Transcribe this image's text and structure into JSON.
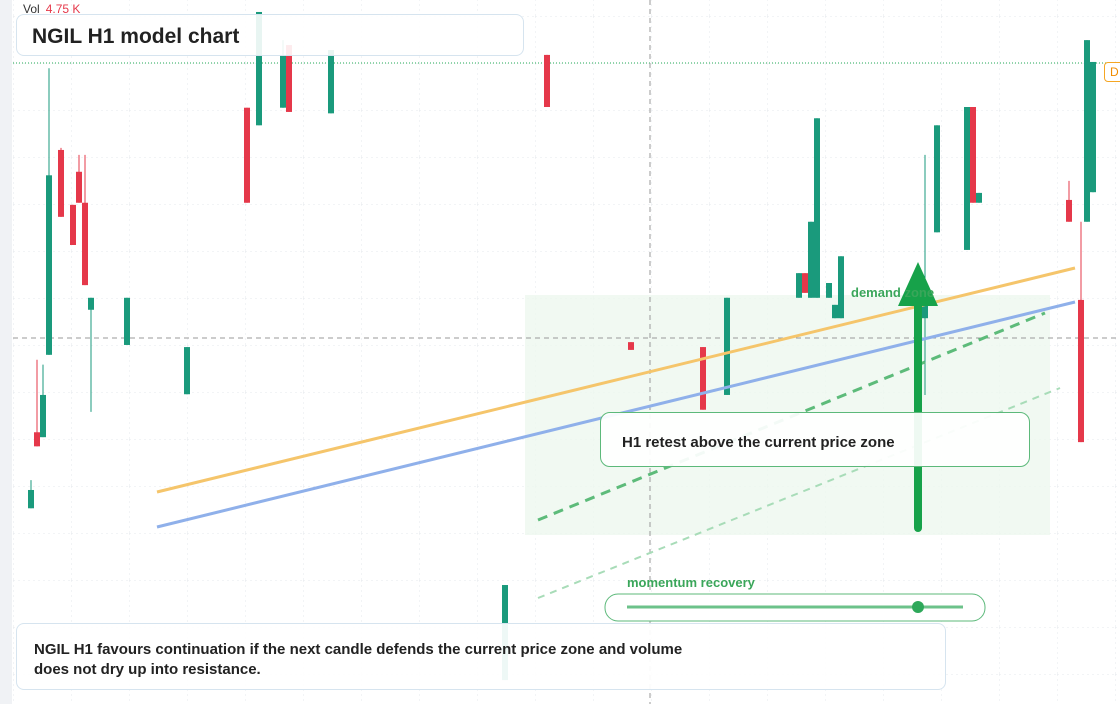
{
  "chart_data": {
    "type": "candlestick",
    "title": "NGIL H1 model chart",
    "volume_label": "Vol",
    "volume_value": "4.75 K",
    "annotations": {
      "zone": "demand zone",
      "callout": "H1 retest above the current price zone",
      "momentum": "momentum recovery",
      "note": "NGIL H1 favours continuation if the next candle defends the current price zone and volume does not dry up into resistance.",
      "marker": "D"
    },
    "up_color": "#1a9a7c",
    "down_color": "#e5384a",
    "xlim": [
      0,
      180
    ],
    "ylim": [
      0,
      100
    ],
    "x": [
      3,
      4,
      5,
      6,
      8,
      10,
      11,
      12,
      13,
      19,
      29,
      39,
      41,
      45,
      46,
      53,
      82,
      89,
      103,
      115,
      119,
      131,
      132,
      133,
      134,
      136,
      137,
      138,
      152,
      154,
      159,
      160,
      161,
      176,
      178,
      179,
      180
    ],
    "open": [
      27.8,
      38.6,
      37.9,
      49.6,
      78.7,
      70.9,
      75.6,
      71.2,
      56.0,
      51.0,
      44.0,
      84.7,
      82.2,
      84.7,
      93.6,
      83.9,
      3.4,
      92.2,
      51.4,
      50.7,
      43.9,
      57.7,
      61.2,
      57.7,
      57.7,
      57.7,
      54.8,
      54.8,
      54.8,
      67.0,
      64.5,
      84.8,
      71.2,
      71.6,
      57.4,
      68.5,
      72.7
    ],
    "high": [
      31.8,
      48.9,
      48.2,
      90.3,
      79.0,
      70.9,
      78.0,
      78.0,
      57.7,
      57.7,
      50.7,
      84.7,
      98.3,
      94.3,
      93.6,
      92.9,
      16.9,
      92.2,
      51.4,
      50.7,
      57.7,
      61.2,
      61.2,
      68.5,
      83.2,
      59.8,
      56.7,
      63.6,
      78.0,
      82.2,
      84.8,
      84.8,
      72.6,
      74.3,
      68.5,
      94.3,
      91.2
    ],
    "low": [
      27.8,
      36.6,
      37.9,
      49.6,
      69.2,
      65.2,
      71.2,
      59.5,
      41.5,
      51.0,
      44.0,
      71.2,
      82.2,
      84.7,
      84.1,
      83.9,
      3.4,
      84.8,
      50.3,
      41.8,
      43.9,
      57.7,
      58.4,
      57.7,
      57.7,
      57.7,
      54.8,
      54.8,
      43.9,
      67.0,
      64.5,
      71.2,
      71.2,
      68.5,
      37.2,
      68.5,
      72.7
    ],
    "close": [
      30.4,
      36.6,
      43.9,
      75.1,
      69.2,
      65.2,
      71.2,
      59.5,
      57.7,
      57.7,
      50.7,
      71.2,
      98.3,
      92.2,
      84.1,
      92.9,
      16.9,
      84.8,
      50.3,
      41.8,
      57.7,
      61.2,
      58.4,
      68.5,
      83.2,
      59.8,
      56.7,
      63.6,
      57.7,
      82.2,
      84.8,
      71.2,
      72.6,
      68.5,
      37.2,
      94.3,
      91.2
    ]
  }
}
